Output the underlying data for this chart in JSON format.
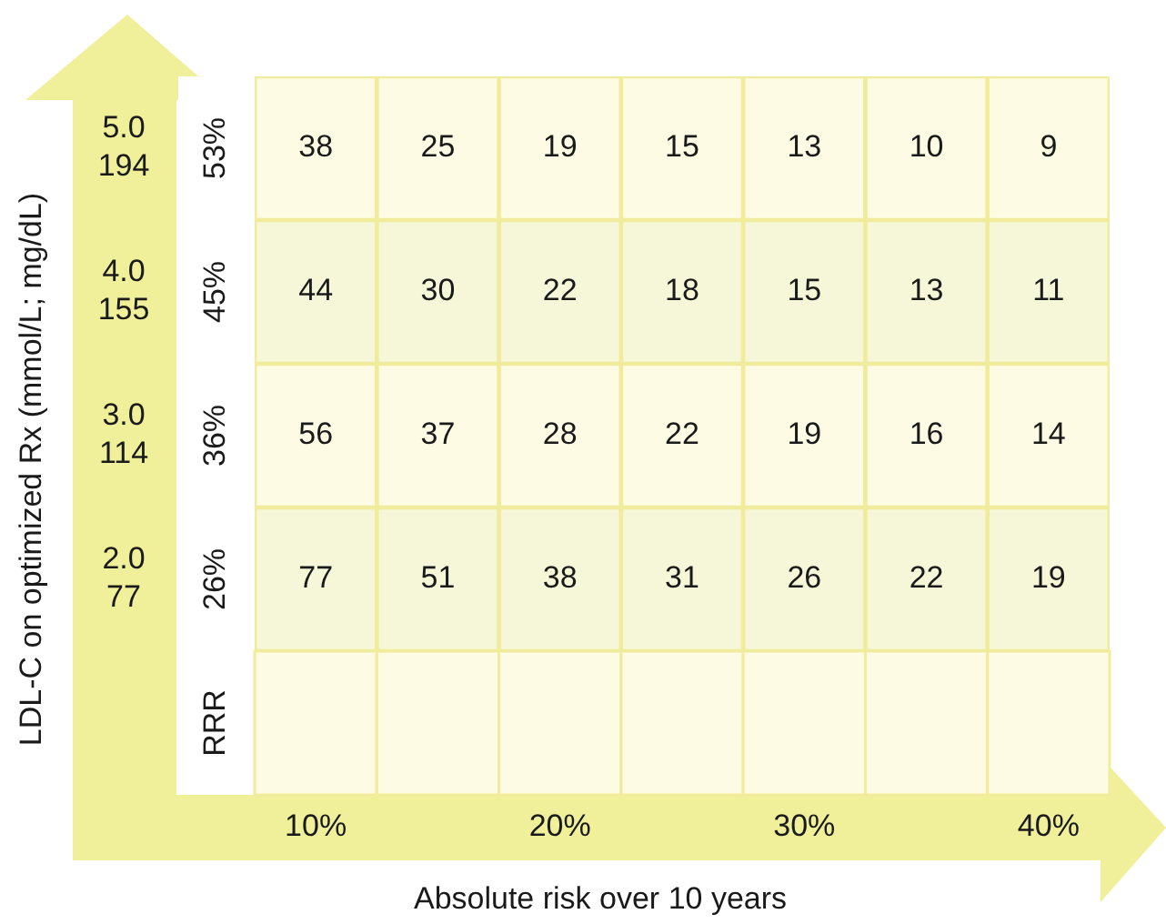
{
  "chart_data": {
    "type": "heatmap",
    "xlabel": "Absolute risk over 10 years",
    "ylabel": "LDL-C on optimized Rx (mmol/L; mg/dL)",
    "categories": [
      "10%",
      null,
      "20%",
      null,
      "30%",
      null,
      "40%"
    ],
    "y_categories": [
      "53%",
      "45%",
      "36%",
      "26%",
      "RRR"
    ],
    "y2_categories": [
      "5.0\n194",
      "4.0\n155",
      "3.0\n114",
      "2.0\n77",
      null
    ],
    "cells": [
      [
        38,
        25,
        19,
        15,
        13,
        10,
        9
      ],
      [
        44,
        30,
        22,
        18,
        15,
        13,
        11
      ],
      [
        56,
        37,
        28,
        22,
        19,
        16,
        14
      ],
      [
        77,
        51,
        38,
        31,
        26,
        22,
        19
      ],
      [
        null,
        null,
        null,
        null,
        null,
        null,
        null
      ]
    ],
    "colors": [
      "#fefbe4",
      "#f5f7d8",
      "#fefbe4",
      "#f5f7d8",
      "#fefbe4"
    ],
    "data_labels": true
  }
}
